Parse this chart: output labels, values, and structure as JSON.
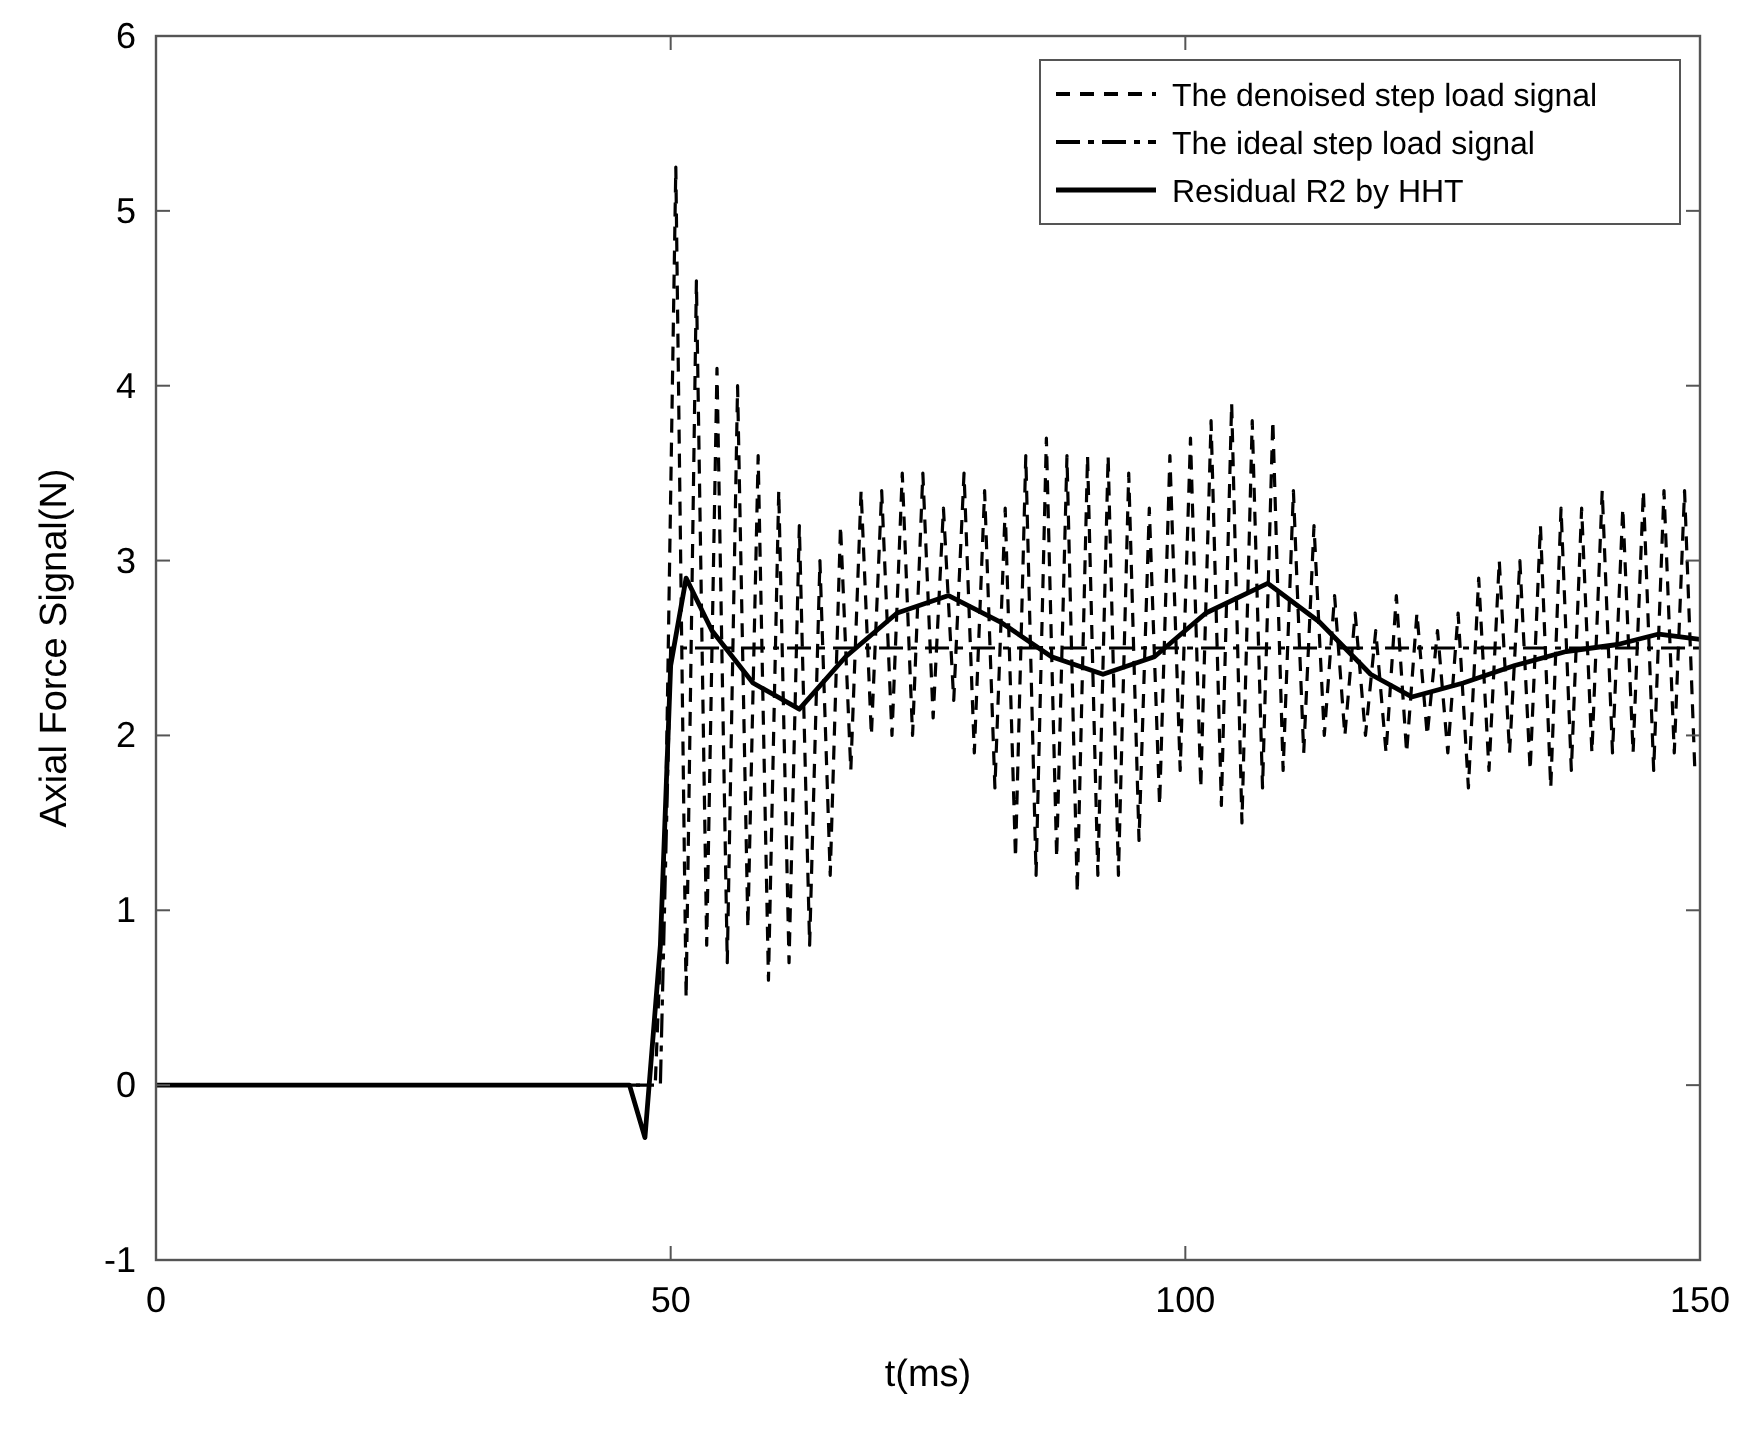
{
  "chart_data": {
    "type": "line",
    "xlabel": "t(ms)",
    "ylabel": "Axial Force Signal(N)",
    "xlim": [
      0,
      150
    ],
    "ylim": [
      -1,
      6
    ],
    "xticks": [
      0,
      50,
      100,
      150
    ],
    "yticks": [
      -1,
      0,
      1,
      2,
      3,
      4,
      5,
      6
    ],
    "grid": false,
    "legend": "top right",
    "marker": "none",
    "series": [
      {
        "name": "The denoised step load signal",
        "color": "#000000",
        "line_style": "dashed",
        "x": [
          0,
          45,
          48.5,
          49.5,
          50.5,
          51.5,
          52.5,
          53.5,
          54.5,
          55.5,
          56.5,
          57.5,
          58.5,
          59.5,
          60.5,
          61.5,
          62.5,
          63.5,
          64.5,
          65.5,
          66.5,
          67.5,
          68.5,
          69.5,
          70.5,
          71.5,
          72.5,
          73.5,
          74.5,
          75.5,
          76.5,
          77.5,
          78.5,
          79.5,
          80.5,
          81.5,
          82.5,
          83.5,
          84.5,
          85.5,
          86.5,
          87.5,
          88.5,
          89.5,
          90.5,
          91.5,
          92.5,
          93.5,
          94.5,
          95.5,
          96.5,
          97.5,
          98.5,
          99.5,
          100.5,
          101.5,
          102.5,
          103.5,
          104.5,
          105.5,
          106.5,
          107.5,
          108.5,
          109.5,
          110.5,
          111.5,
          112.5,
          113.5,
          114.5,
          115.5,
          116.5,
          117.5,
          118.5,
          119.5,
          120.5,
          121.5,
          122.5,
          123.5,
          124.5,
          125.5,
          126.5,
          127.5,
          128.5,
          129.5,
          130.5,
          131.5,
          132.5,
          133.5,
          134.5,
          135.5,
          136.5,
          137.5,
          138.5,
          139.5,
          140.5,
          141.5,
          142.5,
          143.5,
          144.5,
          145.5,
          146.5,
          147.5,
          148.5,
          149.5
        ],
        "values": [
          0,
          0,
          0,
          1.5,
          5.25,
          0.5,
          4.6,
          0.8,
          4.1,
          0.7,
          4.0,
          0.9,
          3.6,
          0.6,
          3.4,
          0.7,
          3.2,
          0.8,
          3.0,
          1.2,
          3.2,
          1.8,
          3.4,
          2.0,
          3.4,
          2.0,
          3.5,
          2.0,
          3.5,
          2.1,
          3.3,
          2.2,
          3.5,
          1.9,
          3.4,
          1.7,
          3.3,
          1.3,
          3.6,
          1.2,
          3.7,
          1.3,
          3.6,
          1.1,
          3.6,
          1.2,
          3.6,
          1.2,
          3.5,
          1.4,
          3.3,
          1.6,
          3.6,
          1.8,
          3.7,
          1.7,
          3.8,
          1.6,
          3.9,
          1.5,
          3.8,
          1.7,
          3.8,
          1.8,
          3.4,
          1.9,
          3.2,
          2.0,
          2.8,
          2.0,
          2.7,
          2.0,
          2.6,
          1.9,
          2.8,
          1.9,
          2.7,
          2.0,
          2.6,
          1.9,
          2.7,
          1.7,
          2.9,
          1.8,
          3.0,
          1.9,
          3.0,
          1.8,
          3.2,
          1.7,
          3.3,
          1.8,
          3.3,
          1.9,
          3.4,
          1.9,
          3.3,
          1.9,
          3.4,
          1.8,
          3.4,
          1.9,
          3.4,
          1.8
        ]
      },
      {
        "name": "The ideal step load signal",
        "color": "#000000",
        "line_style": "dashdot",
        "x": [
          0,
          49,
          50,
          150
        ],
        "values": [
          0,
          0,
          2.5,
          2.5
        ]
      },
      {
        "name": "Residual R2 by HHT",
        "color": "#000000",
        "line_style": "solid",
        "x": [
          0,
          46,
          47.5,
          49,
          50,
          51.5,
          54,
          58,
          62.5,
          67,
          72,
          77,
          82,
          87,
          92,
          97,
          102,
          108,
          113,
          118,
          122,
          127,
          132,
          137,
          142,
          146,
          150
        ],
        "values": [
          0,
          0,
          -0.3,
          0.8,
          2.4,
          2.9,
          2.6,
          2.3,
          2.15,
          2.45,
          2.7,
          2.8,
          2.65,
          2.45,
          2.35,
          2.45,
          2.7,
          2.87,
          2.65,
          2.35,
          2.22,
          2.3,
          2.4,
          2.48,
          2.52,
          2.58,
          2.55
        ]
      }
    ]
  }
}
